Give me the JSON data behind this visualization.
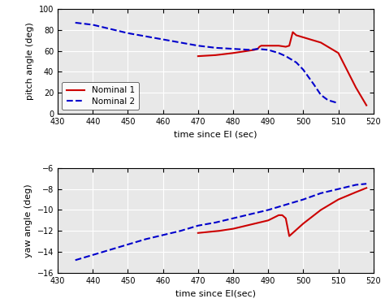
{
  "top": {
    "xlim": [
      430,
      520
    ],
    "ylim": [
      0,
      100
    ],
    "yticks": [
      0,
      20,
      40,
      60,
      80,
      100
    ],
    "xticks": [
      430,
      440,
      450,
      460,
      470,
      480,
      490,
      500,
      510,
      520
    ],
    "xlabel": "time since EI (sec)",
    "ylabel": "pitch angle (deg)",
    "nominal1_color": "#cc0000",
    "nominal2_color": "#0000cc",
    "legend_labels": [
      "Nominal 1",
      "Nominal 2"
    ]
  },
  "bottom": {
    "xlim": [
      430,
      520
    ],
    "ylim": [
      -16,
      -6
    ],
    "yticks": [
      -16,
      -14,
      -12,
      -10,
      -8,
      -6
    ],
    "xticks": [
      430,
      440,
      450,
      460,
      470,
      480,
      490,
      500,
      510,
      520
    ],
    "xlabel": "time since EI(sec)",
    "ylabel": "yaw angle (deg)"
  },
  "axes_facecolor": "#e8e8e8",
  "fig_facecolor": "#ffffff",
  "grid_color": "#ffffff",
  "top_x_n1": [
    470,
    475,
    480,
    484,
    486,
    487,
    487.5,
    488,
    490,
    493,
    495,
    496,
    497,
    498,
    500,
    505,
    510,
    515,
    518
  ],
  "top_y_n1": [
    55,
    56,
    58,
    60,
    61,
    62,
    64,
    65,
    65,
    65,
    64,
    65,
    78,
    75,
    73,
    68,
    58,
    25,
    8
  ],
  "top_x_n2": [
    435,
    440,
    445,
    450,
    455,
    460,
    465,
    470,
    475,
    480,
    485,
    487,
    490,
    493,
    495,
    498,
    500,
    503,
    505,
    507,
    510
  ],
  "top_y_n2": [
    87,
    85,
    81,
    77,
    74,
    71,
    68,
    65,
    63,
    62,
    61,
    62,
    61,
    58,
    55,
    49,
    42,
    28,
    18,
    13,
    10
  ],
  "bot_x_n1": [
    470,
    473,
    476,
    480,
    485,
    490,
    493,
    494,
    495,
    496,
    497,
    500,
    505,
    510,
    515,
    518
  ],
  "bot_y_n1": [
    -12.2,
    -12.1,
    -12.0,
    -11.8,
    -11.4,
    -11.0,
    -10.5,
    -10.5,
    -10.8,
    -12.5,
    -12.2,
    -11.3,
    -10.0,
    -9.0,
    -8.3,
    -7.9
  ],
  "bot_x_n2": [
    435,
    440,
    445,
    450,
    455,
    460,
    465,
    470,
    475,
    480,
    485,
    490,
    493,
    495,
    498,
    500,
    505,
    510,
    515,
    518
  ],
  "bot_y_n2": [
    -14.8,
    -14.3,
    -13.8,
    -13.3,
    -12.8,
    -12.4,
    -12.0,
    -11.5,
    -11.2,
    -10.8,
    -10.4,
    -10.0,
    -9.7,
    -9.5,
    -9.2,
    -9.0,
    -8.4,
    -8.0,
    -7.6,
    -7.5
  ]
}
